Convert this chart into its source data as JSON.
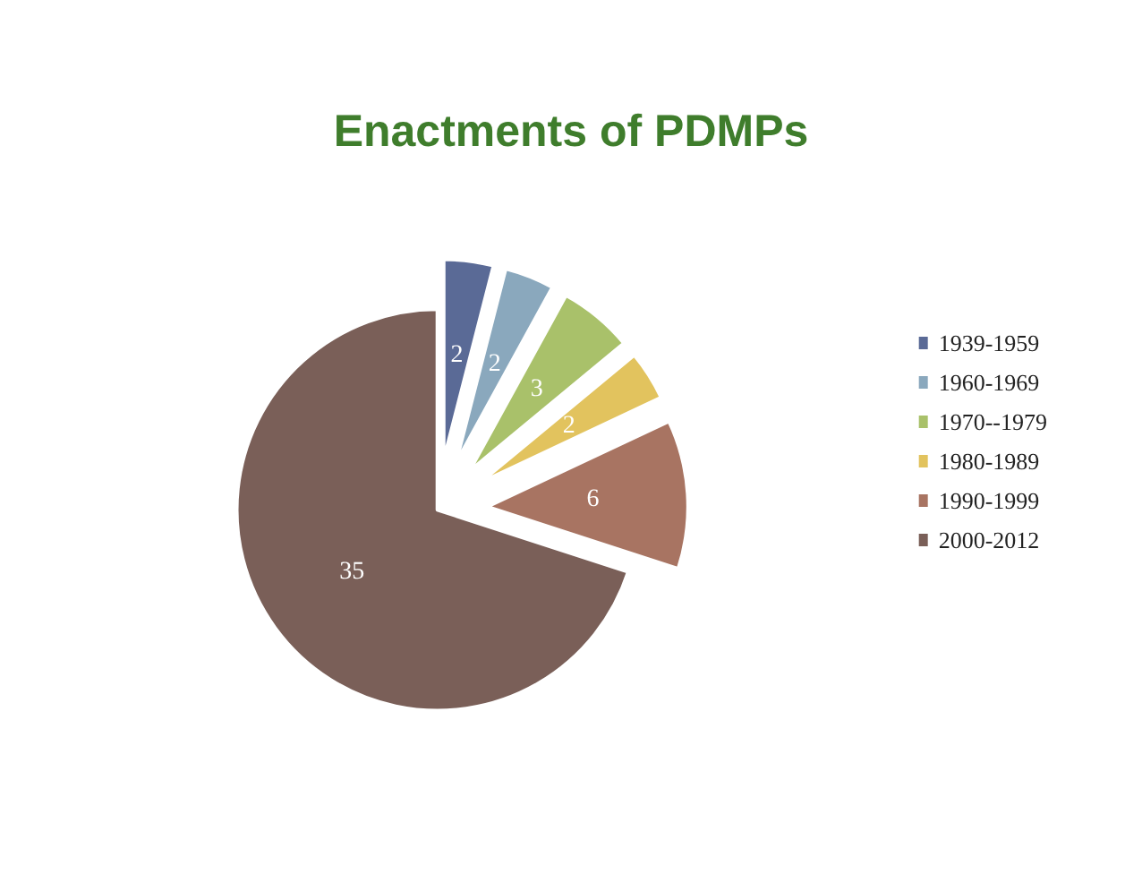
{
  "chart_data": {
    "type": "pie",
    "title": "Enactments of PDMPs",
    "categories": [
      "1939-1959",
      "1960-1969",
      "1970--1979",
      "1980-1989",
      "1990-1999",
      "2000-2012"
    ],
    "values": [
      2,
      2,
      3,
      2,
      6,
      35
    ],
    "colors": [
      "#5a6a96",
      "#8aa8bd",
      "#a9c16a",
      "#e2c35e",
      "#a87462",
      "#7a5f58"
    ],
    "data_labels": true,
    "legend": "right"
  }
}
